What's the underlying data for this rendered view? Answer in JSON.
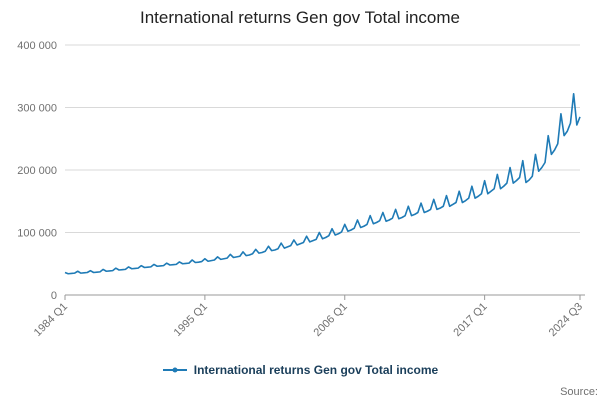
{
  "title": "International returns Gen gov Total income",
  "legend": {
    "label": "International returns Gen gov Total income"
  },
  "source": "Source:",
  "colors": {
    "line": "#1f7bb6",
    "grid": "#d9d9d9",
    "axis": "#999999",
    "tick_text": "#707070",
    "legend_text": "#1a3e5a",
    "title_text": "#222222"
  },
  "chart_data": {
    "type": "line",
    "title": "International returns Gen gov Total income",
    "x_start": "1984 Q1",
    "x_end": "2024 Q3",
    "frequency": "quarterly",
    "ylim": [
      0,
      400000
    ],
    "grid": "horizontal",
    "legend_position": "bottom",
    "y_ticks": [
      {
        "value": 0,
        "label": "0"
      },
      {
        "value": 100000,
        "label": "100 000"
      },
      {
        "value": 200000,
        "label": "200 000"
      },
      {
        "value": 300000,
        "label": "300 000"
      },
      {
        "value": 400000,
        "label": "400 000"
      }
    ],
    "x_ticks": [
      {
        "index": 0,
        "label": "1984 Q1"
      },
      {
        "index": 44,
        "label": "1995 Q1"
      },
      {
        "index": 88,
        "label": "2006 Q1"
      },
      {
        "index": 132,
        "label": "2017 Q1"
      },
      {
        "index": 162,
        "label": "2024 Q3"
      }
    ],
    "series_name": "International returns Gen gov Total income",
    "values": [
      36000,
      34000,
      34500,
      35000,
      38000,
      35000,
      35500,
      36000,
      39000,
      36000,
      36500,
      37000,
      41000,
      38000,
      38500,
      39000,
      43000,
      40000,
      40500,
      41000,
      45000,
      42000,
      42500,
      43000,
      47000,
      44000,
      44500,
      45000,
      49000,
      46000,
      46500,
      47000,
      51000,
      48000,
      48500,
      49000,
      53000,
      50000,
      50500,
      51000,
      56000,
      52000,
      52500,
      53500,
      58000,
      54000,
      55000,
      56000,
      61000,
      57000,
      58000,
      59000,
      65000,
      60000,
      61000,
      62000,
      69000,
      63000,
      64000,
      66000,
      73000,
      67000,
      68000,
      70000,
      78000,
      71000,
      72000,
      74000,
      83000,
      75000,
      77000,
      79000,
      88000,
      80000,
      82000,
      84000,
      94000,
      85000,
      87000,
      89000,
      100000,
      90000,
      92000,
      95000,
      106000,
      96000,
      98000,
      101000,
      113000,
      102000,
      104000,
      107000,
      120000,
      108000,
      110000,
      113000,
      127000,
      114000,
      116000,
      119000,
      132000,
      118000,
      120000,
      123000,
      137000,
      122000,
      124000,
      127000,
      142000,
      127000,
      129000,
      132000,
      147000,
      132000,
      134000,
      137000,
      153000,
      137000,
      139000,
      142000,
      159000,
      142000,
      145000,
      148000,
      166000,
      148000,
      151000,
      155000,
      174000,
      155000,
      158000,
      162000,
      183000,
      162000,
      166000,
      170000,
      193000,
      170000,
      174000,
      179000,
      204000,
      179000,
      183000,
      188000,
      215000,
      180000,
      184000,
      190000,
      225000,
      198000,
      204000,
      212000,
      255000,
      225000,
      232000,
      242000,
      290000,
      255000,
      262000,
      275000,
      322000,
      272000,
      285000
    ]
  }
}
